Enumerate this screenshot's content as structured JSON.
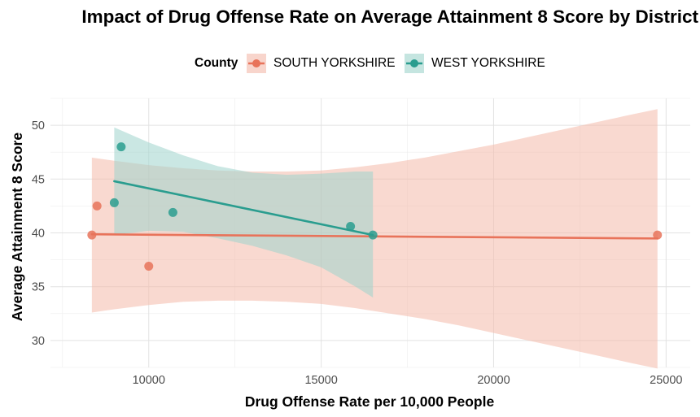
{
  "chart_data": {
    "type": "scatter",
    "title": "Impact of Drug Offense Rate on Average Attainment 8 Score by District",
    "xlabel": "Drug Offense Rate per 10,000 People",
    "ylabel": "Average Attainment 8 Score",
    "xlim": [
      7150,
      25700
    ],
    "ylim": [
      27.5,
      52.5
    ],
    "x_ticks": [
      10000,
      15000,
      20000,
      25000
    ],
    "y_ticks": [
      30,
      35,
      40,
      45,
      50
    ],
    "grid": true,
    "legend": {
      "title": "County",
      "position": "top",
      "entries": [
        "SOUTH YORKSHIRE",
        "WEST YORKSHIRE"
      ]
    },
    "series": [
      {
        "name": "SOUTH YORKSHIRE",
        "color": "#E8735A",
        "band_color": "#F4B9AA",
        "points": [
          {
            "x": 8350,
            "y": 39.8
          },
          {
            "x": 8500,
            "y": 42.5
          },
          {
            "x": 10000,
            "y": 36.9
          },
          {
            "x": 24750,
            "y": 39.8
          }
        ],
        "fit": {
          "x": [
            8350,
            24750
          ],
          "y": [
            39.87,
            39.48
          ]
        },
        "band": {
          "x": [
            8350,
            9000,
            10000,
            11000,
            12000,
            13000,
            14000,
            15000,
            16000,
            17000,
            18000,
            19000,
            20000,
            21000,
            22000,
            23000,
            24000,
            24750
          ],
          "upper": [
            47.0,
            46.7,
            46.3,
            46.0,
            45.8,
            45.7,
            45.7,
            45.8,
            46.1,
            46.5,
            47.0,
            47.6,
            48.2,
            48.9,
            49.6,
            50.3,
            51.0,
            51.5
          ],
          "lower": [
            32.6,
            32.9,
            33.3,
            33.6,
            33.7,
            33.7,
            33.6,
            33.4,
            33.0,
            32.5,
            32.0,
            31.4,
            30.7,
            30.0,
            29.3,
            28.6,
            27.9,
            27.4
          ]
        }
      },
      {
        "name": "WEST YORKSHIRE",
        "color": "#2A9D8F",
        "band_color": "#9ED3CC",
        "points": [
          {
            "x": 9000,
            "y": 42.8
          },
          {
            "x": 9200,
            "y": 48.0
          },
          {
            "x": 10700,
            "y": 41.9
          },
          {
            "x": 15850,
            "y": 40.6
          },
          {
            "x": 16500,
            "y": 39.8
          }
        ],
        "fit": {
          "x": [
            9000,
            16500
          ],
          "y": [
            44.8,
            39.8
          ]
        },
        "band": {
          "x": [
            9000,
            10000,
            11000,
            12000,
            13000,
            14000,
            15000,
            16000,
            16500
          ],
          "upper": [
            49.8,
            48.4,
            47.2,
            46.2,
            45.6,
            45.4,
            45.5,
            45.7,
            45.7
          ],
          "lower": [
            39.8,
            40.2,
            40.1,
            39.5,
            38.8,
            37.9,
            36.8,
            35.0,
            34.0
          ]
        }
      }
    ]
  }
}
